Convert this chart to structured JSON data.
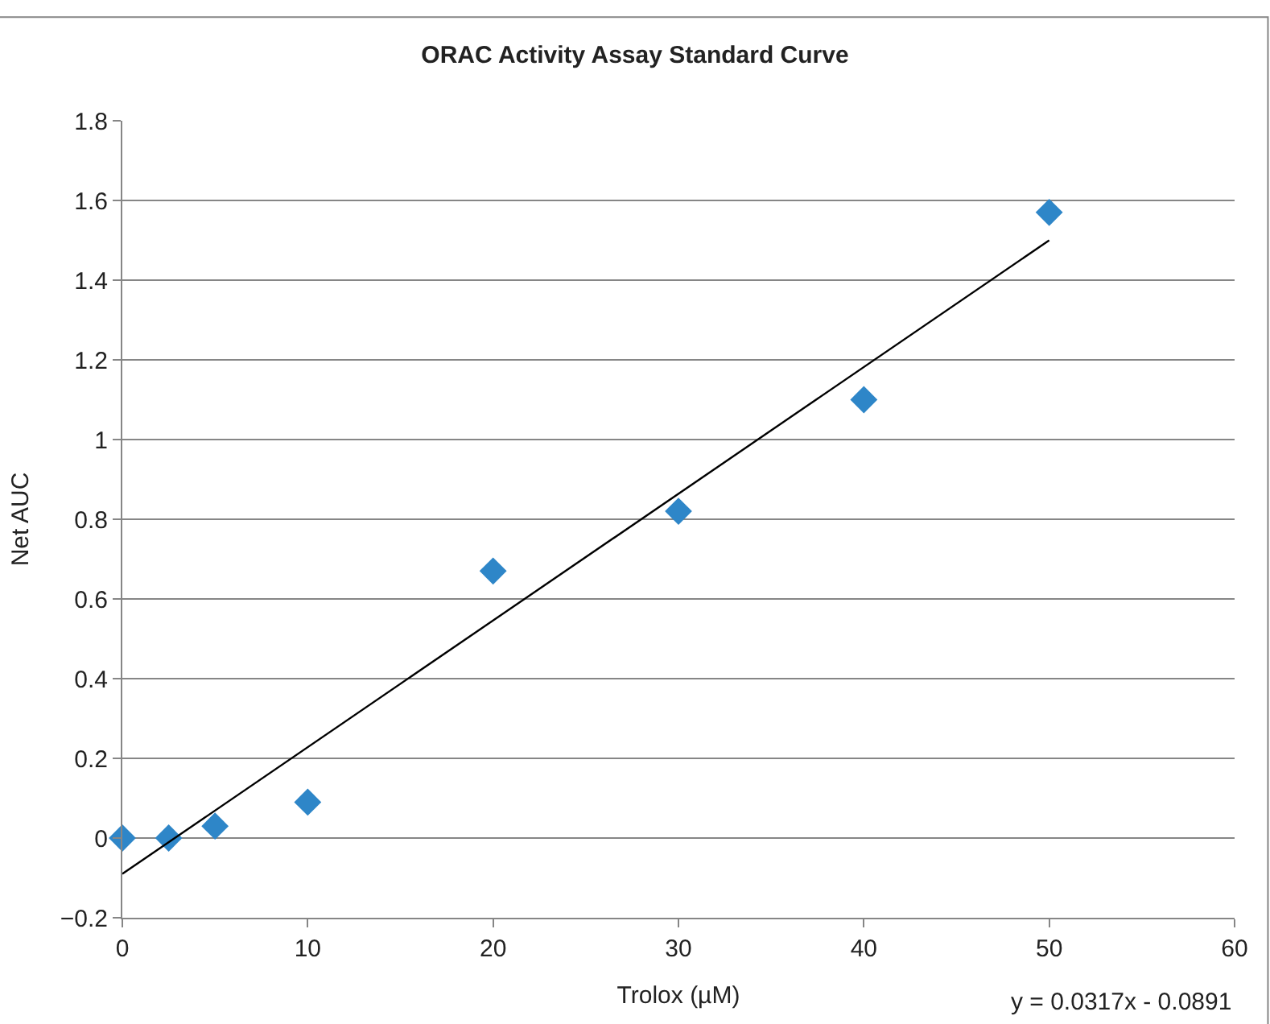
{
  "chart_data": {
    "type": "scatter",
    "title": "ORAC Activity Assay Standard Curve",
    "xlabel": "Trolox (µM)",
    "ylabel": "Net AUC",
    "series": [
      {
        "color": "#2e86c8",
        "marker": "diamond",
        "x": [
          0,
          2.5,
          5,
          10,
          20,
          30,
          40,
          50
        ],
        "values": [
          0,
          0,
          0.03,
          0.09,
          0.67,
          0.82,
          1.1,
          1.57
        ]
      },
      {
        "type": "line",
        "color": "#000000",
        "marker": "none",
        "x": [
          0,
          50
        ],
        "values": [
          -0.09,
          1.5
        ]
      }
    ],
    "xlim": [
      0,
      60
    ],
    "xticks": [
      0,
      10,
      20,
      30,
      40,
      50,
      60
    ],
    "ylim": [
      -0.2,
      1.8
    ],
    "yticks": [
      -0.2,
      0,
      0.2,
      0.4,
      0.6,
      0.8,
      1,
      1.2,
      1.4,
      1.6,
      1.8
    ],
    "grid": "y",
    "annotations": [
      "y = 0.0317x - 0.0891"
    ]
  }
}
